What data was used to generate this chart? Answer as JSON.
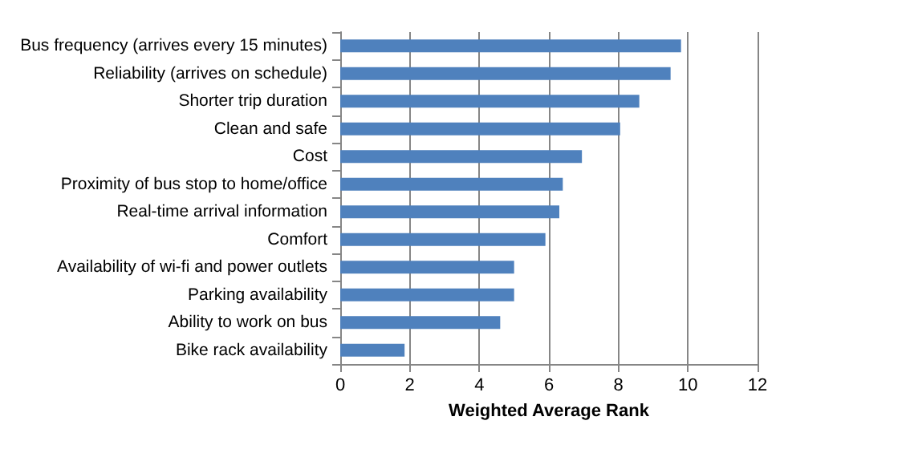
{
  "chart_data": {
    "type": "bar",
    "orientation": "horizontal",
    "xlabel": "Weighted Average Rank",
    "categories": [
      "Bus frequency (arrives every 15 minutes)",
      "Reliability (arrives on schedule)",
      "Shorter trip duration",
      "Clean and safe",
      "Cost",
      "Proximity of bus stop to home/office",
      "Real-time arrival information",
      "Comfort",
      "Availability of wi-fi and power outlets",
      "Parking availability",
      "Ability to work on bus",
      "Bike rack availability"
    ],
    "values": [
      9.8,
      9.5,
      8.6,
      8.05,
      6.95,
      6.4,
      6.3,
      5.9,
      5.0,
      5.0,
      4.6,
      1.85
    ],
    "color": "#4f81bd",
    "xlim": [
      0,
      12
    ],
    "xticks": [
      0,
      2,
      4,
      6,
      8,
      10,
      12
    ],
    "grid": "x"
  }
}
